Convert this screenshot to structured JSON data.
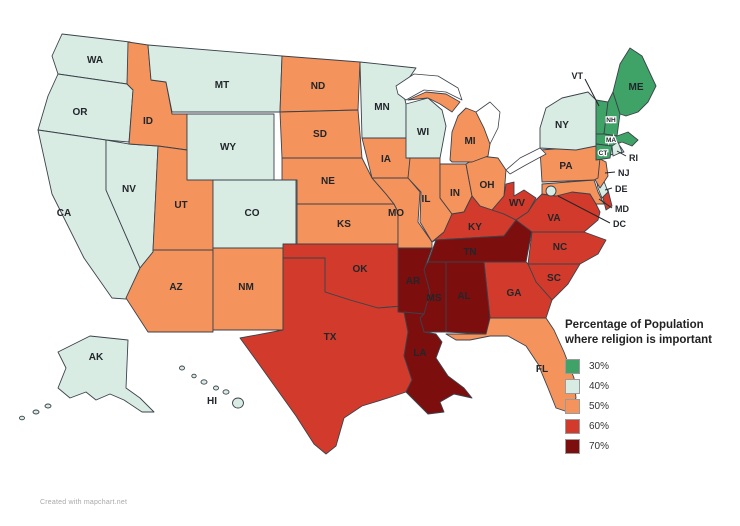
{
  "legend": {
    "title_line1": "Percentage of Population",
    "title_line2": "where religion is important",
    "items": [
      {
        "label": "30%",
        "color": "#3FA367"
      },
      {
        "label": "40%",
        "color": "#D9ECE4"
      },
      {
        "label": "50%",
        "color": "#F4935B"
      },
      {
        "label": "60%",
        "color": "#D23B2B"
      },
      {
        "label": "70%",
        "color": "#7D0E0E"
      }
    ]
  },
  "attribution": "Created with mapchart.net",
  "states": {
    "WA": {
      "label": "WA",
      "value": "40%"
    },
    "OR": {
      "label": "OR",
      "value": "40%"
    },
    "CA": {
      "label": "CA",
      "value": "40%"
    },
    "NV": {
      "label": "NV",
      "value": "40%"
    },
    "ID": {
      "label": "ID",
      "value": "50%"
    },
    "MT": {
      "label": "MT",
      "value": "40%"
    },
    "WY": {
      "label": "WY",
      "value": "40%"
    },
    "UT": {
      "label": "UT",
      "value": "50%"
    },
    "CO": {
      "label": "CO",
      "value": "40%"
    },
    "AZ": {
      "label": "AZ",
      "value": "50%"
    },
    "NM": {
      "label": "NM",
      "value": "50%"
    },
    "ND": {
      "label": "ND",
      "value": "50%"
    },
    "SD": {
      "label": "SD",
      "value": "50%"
    },
    "NE": {
      "label": "NE",
      "value": "50%"
    },
    "KS": {
      "label": "KS",
      "value": "50%"
    },
    "OK": {
      "label": "OK",
      "value": "60%"
    },
    "TX": {
      "label": "TX",
      "value": "60%"
    },
    "MN": {
      "label": "MN",
      "value": "40%"
    },
    "IA": {
      "label": "IA",
      "value": "50%"
    },
    "MO": {
      "label": "MO",
      "value": "50%"
    },
    "AR": {
      "label": "AR",
      "value": "70%"
    },
    "LA": {
      "label": "LA",
      "value": "70%"
    },
    "WI": {
      "label": "WI",
      "value": "40%"
    },
    "IL": {
      "label": "IL",
      "value": "50%"
    },
    "IN": {
      "label": "IN",
      "value": "50%"
    },
    "MI": {
      "label": "MI",
      "value": "50%"
    },
    "OH": {
      "label": "OH",
      "value": "50%"
    },
    "KY": {
      "label": "KY",
      "value": "60%"
    },
    "TN": {
      "label": "TN",
      "value": "70%"
    },
    "MS": {
      "label": "MS",
      "value": "70%"
    },
    "AL": {
      "label": "AL",
      "value": "70%"
    },
    "GA": {
      "label": "GA",
      "value": "60%"
    },
    "FL": {
      "label": "FL",
      "value": "50%"
    },
    "SC": {
      "label": "SC",
      "value": "60%"
    },
    "NC": {
      "label": "NC",
      "value": "60%"
    },
    "VA": {
      "label": "VA",
      "value": "60%"
    },
    "WV": {
      "label": "WV",
      "value": "60%"
    },
    "MD": {
      "label": "MD",
      "value": "50%"
    },
    "DE": {
      "label": "DE",
      "value": "40%"
    },
    "DC": {
      "label": "DC",
      "value": "40%"
    },
    "NJ": {
      "label": "NJ",
      "value": "50%"
    },
    "PA": {
      "label": "PA",
      "value": "50%"
    },
    "NY": {
      "label": "NY",
      "value": "40%"
    },
    "CT": {
      "label": "CT",
      "value": "30%"
    },
    "RI": {
      "label": "RI",
      "value": "40%"
    },
    "MA": {
      "label": "MA",
      "value": "30%"
    },
    "VT": {
      "label": "VT",
      "value": "30%"
    },
    "NH": {
      "label": "NH",
      "value": "30%"
    },
    "ME": {
      "label": "ME",
      "value": "30%"
    },
    "AK": {
      "label": "AK",
      "value": "40%"
    },
    "HI": {
      "label": "HI",
      "value": "40%"
    }
  }
}
